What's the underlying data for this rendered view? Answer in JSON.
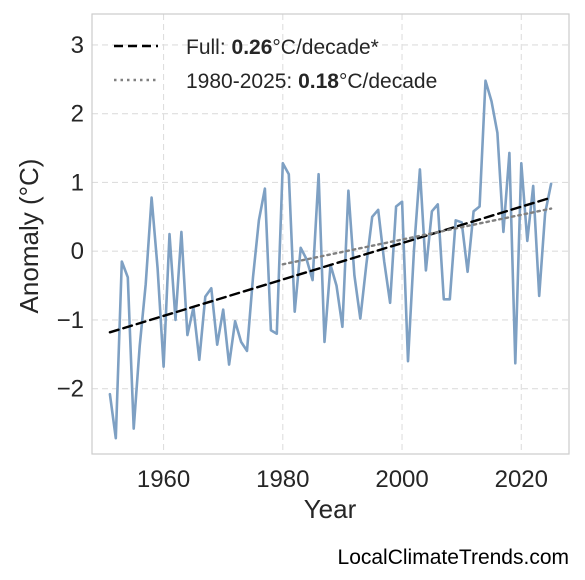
{
  "chart_data": {
    "type": "line",
    "xlabel": "Year",
    "ylabel": "Anomaly (°C)",
    "xlim": [
      1948,
      2028
    ],
    "ylim": [
      -2.95,
      3.45
    ],
    "xticks": [
      1960,
      1980,
      2000,
      2020
    ],
    "yticks": [
      -2,
      -1,
      0,
      1,
      2,
      3
    ],
    "ytick_labels": [
      "−2",
      "−1",
      "0",
      "1",
      "2",
      "3"
    ],
    "grid": true,
    "legend_position": "top-left",
    "legend": [
      {
        "style": "dashed",
        "prefix": "Full: ",
        "value": "0.26",
        "suffix": "°C/decade*"
      },
      {
        "style": "dotted",
        "prefix": "1980-2025: ",
        "value": "0.18",
        "suffix": "°C/decade"
      }
    ],
    "series": [
      {
        "style": "solid",
        "x": [
          1951,
          1952,
          1953,
          1954,
          1955,
          1956,
          1957,
          1958,
          1959,
          1960,
          1961,
          1962,
          1963,
          1964,
          1965,
          1966,
          1967,
          1968,
          1969,
          1970,
          1971,
          1972,
          1973,
          1974,
          1975,
          1976,
          1977,
          1978,
          1979,
          1980,
          1981,
          1982,
          1983,
          1984,
          1985,
          1986,
          1987,
          1988,
          1989,
          1990,
          1991,
          1992,
          1993,
          1994,
          1995,
          1996,
          1997,
          1998,
          1999,
          2000,
          2001,
          2002,
          2003,
          2004,
          2005,
          2006,
          2007,
          2008,
          2009,
          2010,
          2011,
          2012,
          2013,
          2014,
          2015,
          2016,
          2017,
          2018,
          2019,
          2020,
          2021,
          2022,
          2023,
          2024,
          2025
        ],
        "y": [
          -2.08,
          -2.72,
          -0.15,
          -0.38,
          -2.58,
          -1.38,
          -0.48,
          0.78,
          -0.25,
          -1.68,
          0.25,
          -1.0,
          0.28,
          -1.22,
          -0.82,
          -1.58,
          -0.66,
          -0.54,
          -1.36,
          -0.85,
          -1.65,
          -1.02,
          -1.32,
          -1.45,
          -0.38,
          0.45,
          0.91,
          -1.15,
          -1.2,
          1.28,
          1.12,
          -0.88,
          0.05,
          -0.12,
          -0.42,
          1.12,
          -1.32,
          -0.2,
          -0.5,
          -1.1,
          0.88,
          -0.35,
          -0.98,
          -0.2,
          0.5,
          0.6,
          -0.15,
          -0.75,
          0.65,
          0.72,
          -1.6,
          0.02,
          1.19,
          -0.28,
          0.58,
          0.68,
          -0.7,
          -0.7,
          0.45,
          0.42,
          -0.3,
          0.58,
          0.65,
          2.48,
          2.18,
          1.72,
          0.28,
          1.43,
          -1.63,
          1.28,
          0.15,
          0.95,
          -0.65,
          0.55,
          0.98
        ],
        "color": "#7ea0c3"
      },
      {
        "style": "dashed",
        "x": [
          1951,
          2025
        ],
        "y": [
          -1.18,
          0.78
        ],
        "color": "#000000"
      },
      {
        "style": "dotted",
        "x": [
          1980,
          2025
        ],
        "y": [
          -0.19,
          0.62
        ],
        "color": "#808080"
      }
    ]
  },
  "credit": "LocalClimateTrends.com"
}
